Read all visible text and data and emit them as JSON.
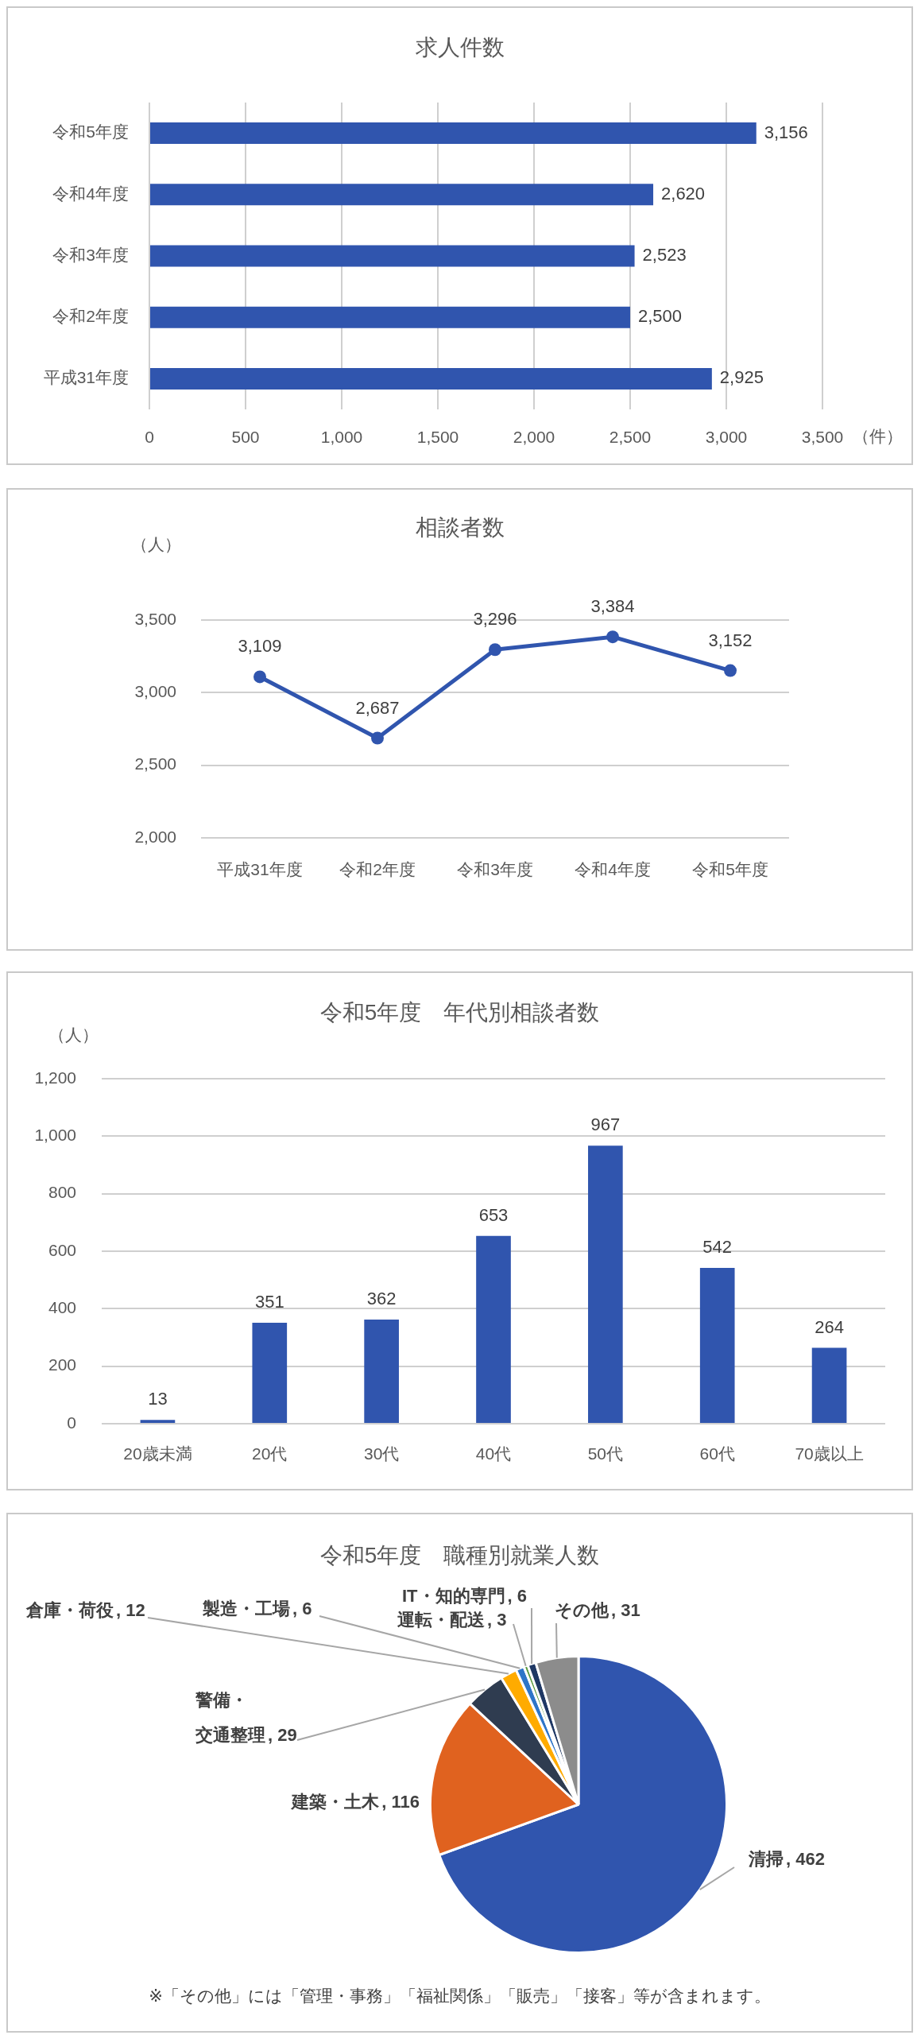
{
  "chart_data": [
    {
      "type": "bar",
      "orientation": "horizontal",
      "title": "求人件数",
      "xlabel": "（件）",
      "categories": [
        "令和5年度",
        "令和4年度",
        "令和3年度",
        "令和2年度",
        "平成31年度"
      ],
      "values": [
        3156,
        2620,
        2523,
        2500,
        2925
      ],
      "color": "#3055ae",
      "value_labels": [
        "3,156",
        "2,620",
        "2,523",
        "2,500",
        "2,925"
      ],
      "xlim": [
        0,
        3500
      ],
      "xticks": [
        0,
        500,
        {
          "value": 1000,
          "label": "1,000"
        },
        {
          "value": 1500,
          "label": "1,500"
        },
        {
          "value": 2000,
          "label": "2,000"
        },
        {
          "value": 2500,
          "label": "2,500"
        },
        {
          "value": 3000,
          "label": "3,000"
        },
        {
          "value": 3500,
          "label": "3,500"
        }
      ],
      "grid": "x"
    },
    {
      "type": "line",
      "title": "相談者数",
      "ylabel": "（人）",
      "categories": [
        "平成31年度",
        "令和2年度",
        "令和3年度",
        "令和4年度",
        "令和5年度"
      ],
      "values": [
        3109,
        2687,
        3296,
        3384,
        3152
      ],
      "color": "#3055ae",
      "value_labels": [
        "3,109",
        "2,687",
        "3,296",
        "3,384",
        "3,152"
      ],
      "ylim": [
        2000,
        3500
      ],
      "yticks": [
        {
          "value": 2000,
          "label": "2,000"
        },
        {
          "value": 2500,
          "label": "2,500"
        },
        {
          "value": 3000,
          "label": "3,000"
        },
        {
          "value": 3500,
          "label": "3,500"
        }
      ],
      "grid": "y",
      "marker": "circle"
    },
    {
      "type": "bar",
      "title": "令和5年度　年代別相談者数",
      "ylabel": "（人）",
      "categories": [
        "20歳未満",
        "20代",
        "30代",
        "40代",
        "50代",
        "60代",
        "70歳以上"
      ],
      "values": [
        13,
        351,
        362,
        653,
        967,
        542,
        264
      ],
      "color": "#3055ae",
      "data_labels": true,
      "ylim": [
        0,
        1200
      ],
      "yticks": [
        0,
        200,
        400,
        600,
        800,
        {
          "value": 1000,
          "label": "1,000"
        },
        {
          "value": 1200,
          "label": "1,200"
        }
      ],
      "grid": "y"
    },
    {
      "type": "pie",
      "title": "令和5年度　職種別就業人数",
      "categories": [
        "清掃",
        "建築・土木",
        "警備・交通整理",
        "倉庫・荷役",
        "製造・工場",
        "運転・配送",
        "IT・知的専門",
        "その他"
      ],
      "values": [
        462,
        116,
        29,
        12,
        6,
        3,
        6,
        31
      ],
      "colors": [
        "#3055ae",
        "#e0621f",
        "#2f3c50",
        "#ffab00",
        "#2e75c8",
        "#5b9a3e",
        "#1f3864",
        "#8c8c8c"
      ],
      "value_labels": [
        ", 462",
        ", 116",
        ", 29",
        ", 12",
        ", 6",
        ", 3",
        ", 6",
        ", 31"
      ],
      "annotations": [
        "※「その他」には「管理・事務」「福祉関係」「販売」「接客」等が含まれます。"
      ]
    }
  ]
}
